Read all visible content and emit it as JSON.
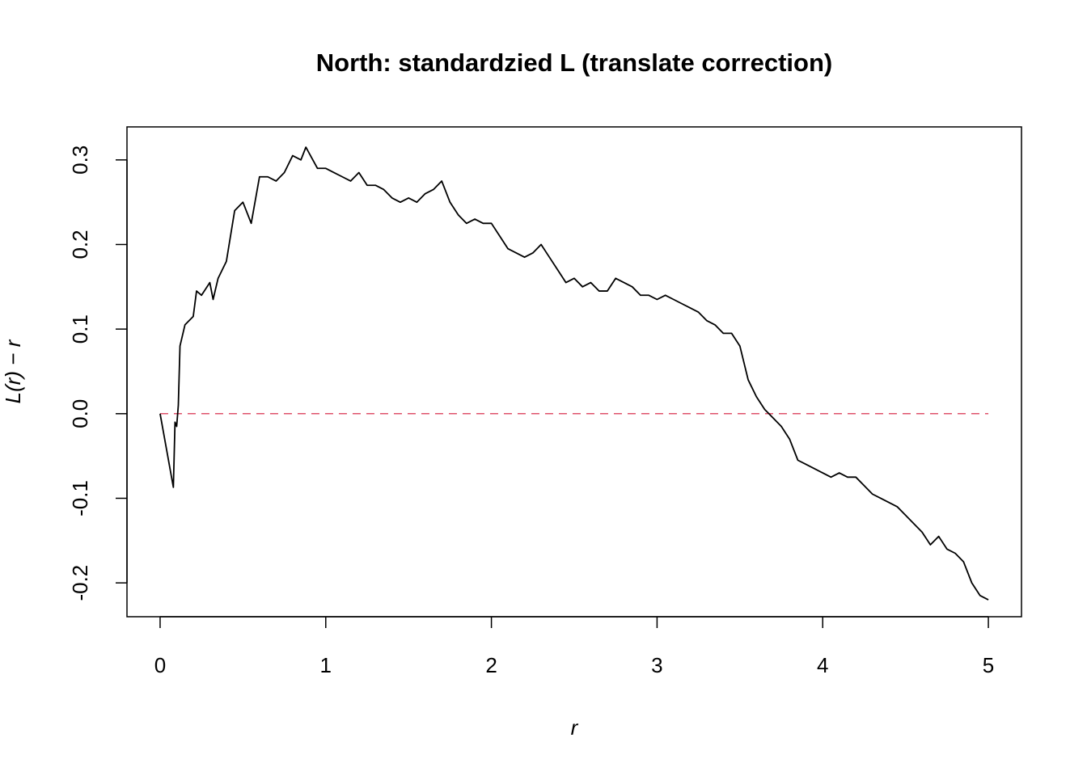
{
  "chart_data": {
    "type": "line",
    "title": "North: standardzied L (translate correction)",
    "x_label": "r",
    "y_label": "L(r) − r",
    "x": [
      0,
      0.08,
      0.09,
      0.1,
      0.11,
      0.12,
      0.15,
      0.2,
      0.22,
      0.25,
      0.3,
      0.32,
      0.35,
      0.4,
      0.45,
      0.5,
      0.55,
      0.6,
      0.65,
      0.7,
      0.75,
      0.8,
      0.85,
      0.88,
      0.95,
      1.0,
      1.05,
      1.1,
      1.15,
      1.2,
      1.25,
      1.3,
      1.35,
      1.4,
      1.45,
      1.5,
      1.55,
      1.6,
      1.65,
      1.7,
      1.75,
      1.8,
      1.85,
      1.9,
      1.95,
      2.0,
      2.05,
      2.1,
      2.15,
      2.2,
      2.25,
      2.3,
      2.35,
      2.4,
      2.45,
      2.5,
      2.55,
      2.6,
      2.65,
      2.7,
      2.75,
      2.8,
      2.85,
      2.9,
      2.95,
      3.0,
      3.05,
      3.1,
      3.15,
      3.2,
      3.25,
      3.3,
      3.35,
      3.4,
      3.45,
      3.5,
      3.55,
      3.6,
      3.65,
      3.7,
      3.75,
      3.8,
      3.85,
      3.9,
      3.95,
      4.0,
      4.05,
      4.1,
      4.15,
      4.2,
      4.25,
      4.3,
      4.35,
      4.4,
      4.45,
      4.5,
      4.55,
      4.6,
      4.65,
      4.7,
      4.75,
      4.8,
      4.85,
      4.9,
      4.95,
      5.0
    ],
    "series": [
      {
        "color": "#000000",
        "values": [
          0,
          -0.087,
          -0.01,
          -0.015,
          0.01,
          0.08,
          0.105,
          0.115,
          0.145,
          0.14,
          0.155,
          0.135,
          0.16,
          0.18,
          0.24,
          0.25,
          0.225,
          0.28,
          0.28,
          0.275,
          0.285,
          0.305,
          0.3,
          0.315,
          0.29,
          0.29,
          0.285,
          0.28,
          0.275,
          0.285,
          0.27,
          0.27,
          0.265,
          0.255,
          0.25,
          0.255,
          0.25,
          0.26,
          0.265,
          0.275,
          0.25,
          0.235,
          0.225,
          0.23,
          0.225,
          0.225,
          0.21,
          0.195,
          0.19,
          0.185,
          0.19,
          0.2,
          0.185,
          0.17,
          0.155,
          0.16,
          0.15,
          0.155,
          0.145,
          0.145,
          0.16,
          0.155,
          0.15,
          0.14,
          0.14,
          0.135,
          0.14,
          0.135,
          0.13,
          0.125,
          0.12,
          0.11,
          0.105,
          0.095,
          0.095,
          0.08,
          0.04,
          0.02,
          0.005,
          -0.005,
          -0.015,
          -0.03,
          -0.055,
          -0.06,
          -0.065,
          -0.07,
          -0.075,
          -0.07,
          -0.075,
          -0.075,
          -0.085,
          -0.095,
          -0.1,
          -0.105,
          -0.11,
          -0.12,
          -0.13,
          -0.14,
          -0.155,
          -0.145,
          -0.16,
          -0.165,
          -0.175,
          -0.2,
          -0.215,
          -0.22
        ]
      }
    ],
    "reference_line": {
      "y": 0,
      "x": [
        0,
        5
      ],
      "color": "#df536b",
      "dash": true
    },
    "xlim": [
      -0.2,
      5.2
    ],
    "xticks": [
      0,
      1,
      2,
      3,
      4,
      5
    ],
    "ylim": [
      -0.24,
      0.339
    ],
    "yticks": [
      -0.2,
      -0.1,
      {
        "value": 0,
        "label": "0.0"
      },
      0.1,
      0.2,
      0.3
    ]
  }
}
